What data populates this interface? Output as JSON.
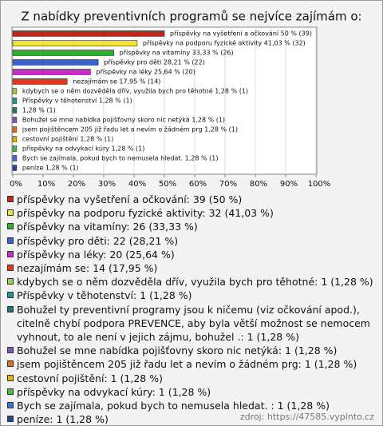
{
  "chart_data": {
    "type": "bar",
    "orientation": "horizontal",
    "title": "Z nabídky preventivních programů se nejvíce zajímám o:",
    "values": [
      50,
      41.03,
      33.33,
      28.21,
      25.64,
      17.95,
      1.28,
      1.28,
      1.28,
      1.28,
      1.28,
      1.28,
      1.28,
      1.28,
      1.28
    ],
    "value_labels": [
      "příspěvky na vyšetření a očkování 50 % (39)",
      "příspěvky na podporu fyzické aktivity 41,03 % (32)",
      "příspěvky na vitamíny 33,33 % (26)",
      "příspěvky pro děti 28,21 % (22)",
      "příspěvky na léky 25,64 % (20)",
      "nezajímám se 17,95 % (14)",
      "kdybych se o něm dozvěděla dřív, využila bych pro těhotné 1,28 % (1)",
      "Příspěvky v těhotenství 1,28 % (1)",
      "1,28 % (1)",
      "Bohužel se mne nabídka pojišťovny skoro nic netýká 1,28 % (1)",
      "jsem pojištěncem 205 již řadu let a nevím o žádném prg 1,28 % (1)",
      "cestovní pojištění 1,28 % (1)",
      "příspěvky na odvykací kúry 1,28 % (1)",
      "Bych se zajímala, pokud bych to nemusela hledat.  1,28 % (1)",
      "peníze 1,28 % (1)"
    ],
    "legend_labels": [
      "příspěvky na vyšetření a očkování: 39 (50 %)",
      "příspěvky na podporu fyzické aktivity: 32 (41,03 %)",
      "příspěvky na vitamíny: 26 (33,33 %)",
      "příspěvky pro děti: 22 (28,21 %)",
      "příspěvky na léky: 20 (25,64 %)",
      "nezajímám se: 14 (17,95 %)",
      "kdybych se o něm dozvěděla dřív, využila bych pro těhotné: 1 (1,28 %)",
      "Příspěvky v těhotenství: 1 (1,28 %)",
      "Bohužel ty preventivní programy jsou k ničemu (viz očkování apod.), citelně chybí podpora PREVENCE, aby byla větší možnost se nemocem vyhnout, to ale není v jejich zájmu, bohužel .: 1 (1,28 %)",
      "Bohužel se mne nabídka pojišťovny skoro nic netýká: 1 (1,28 %)",
      "jsem pojištěncem 205 již řadu let a nevím o žádném prg: 1 (1,28 %)",
      "cestovní pojištění: 1 (1,28 %)",
      "příspěvky na odvykací kúry: 1 (1,28 %)",
      "Bych se zajímala, pokud bych to nemusela hledat. : 1 (1,28 %)",
      "peníze: 1 (1,28 %)"
    ],
    "colors": [
      "#b52a1c",
      "#f2e33a",
      "#2fae2f",
      "#3a5fd0",
      "#c82cc8",
      "#e03a1e",
      "#9ccf4a",
      "#1f9a8c",
      "#2a6f80",
      "#7a5bb0",
      "#e0701f",
      "#e8b400",
      "#4cb84c",
      "#3b6fd6",
      "#25479a"
    ],
    "xlim": [
      0,
      100
    ],
    "xticks": [
      {
        "value": 0,
        "label": "0%"
      },
      {
        "value": 10,
        "label": "10%"
      },
      {
        "value": 20,
        "label": "20%"
      },
      {
        "value": 30,
        "label": "30%"
      },
      {
        "value": 40,
        "label": "40%"
      },
      {
        "value": 50,
        "label": "50%"
      },
      {
        "value": 60,
        "label": "60%"
      },
      {
        "value": 70,
        "label": "70%"
      },
      {
        "value": 80,
        "label": "80%"
      },
      {
        "value": 90,
        "label": "90%"
      },
      {
        "value": 100,
        "label": "100%"
      }
    ],
    "grid": true,
    "source": "zdroj: https://47585.vyplnto.cz"
  }
}
